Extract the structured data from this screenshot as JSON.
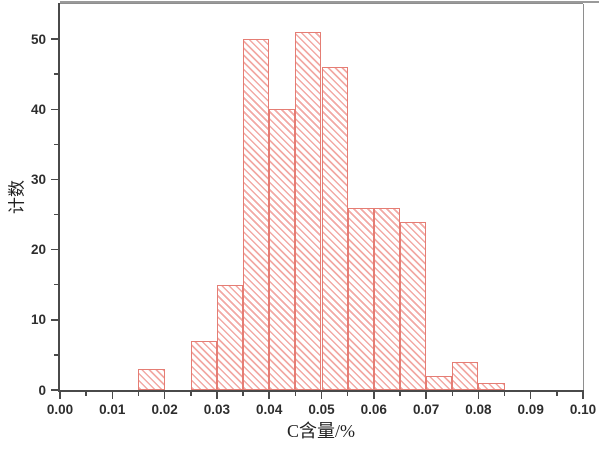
{
  "figure": {
    "background": "#ffffff",
    "frame_dark_color": "#4a4a4a",
    "frame_light_color": "#8e8e8e"
  },
  "chart_data": {
    "type": "bar",
    "subtype": "histogram",
    "title": "",
    "xlabel": "C含量/%",
    "ylabel": "计数",
    "xlim": [
      0.0,
      0.1
    ],
    "ylim": [
      0,
      55
    ],
    "grid": false,
    "legend": "none",
    "bin_width": 0.005,
    "bins": [
      {
        "x_start": 0.015,
        "count": 3
      },
      {
        "x_start": 0.025,
        "count": 7
      },
      {
        "x_start": 0.03,
        "count": 15
      },
      {
        "x_start": 0.035,
        "count": 50
      },
      {
        "x_start": 0.04,
        "count": 40
      },
      {
        "x_start": 0.045,
        "count": 51
      },
      {
        "x_start": 0.05,
        "count": 46
      },
      {
        "x_start": 0.055,
        "count": 26
      },
      {
        "x_start": 0.06,
        "count": 26
      },
      {
        "x_start": 0.065,
        "count": 24
      },
      {
        "x_start": 0.07,
        "count": 2
      },
      {
        "x_start": 0.075,
        "count": 4
      },
      {
        "x_start": 0.08,
        "count": 1
      }
    ],
    "x_major_ticks": [
      {
        "value": 0.0,
        "label": "0.00"
      },
      {
        "value": 0.01,
        "label": "0.01"
      },
      {
        "value": 0.02,
        "label": "0.02"
      },
      {
        "value": 0.03,
        "label": "0.03"
      },
      {
        "value": 0.04,
        "label": "0.04"
      },
      {
        "value": 0.05,
        "label": "0.05"
      },
      {
        "value": 0.06,
        "label": "0.06"
      },
      {
        "value": 0.07,
        "label": "0.07"
      },
      {
        "value": 0.08,
        "label": "0.08"
      },
      {
        "value": 0.09,
        "label": "0.09"
      },
      {
        "value": 0.1,
        "label": "0.10"
      }
    ],
    "x_minor_ticks": [
      0.005,
      0.015,
      0.025,
      0.035,
      0.045,
      0.055,
      0.065,
      0.075,
      0.085,
      0.095
    ],
    "y_major_ticks": [
      {
        "value": 0,
        "label": "0"
      },
      {
        "value": 10,
        "label": "10"
      },
      {
        "value": 20,
        "label": "20"
      },
      {
        "value": 30,
        "label": "30"
      },
      {
        "value": 40,
        "label": "40"
      },
      {
        "value": 50,
        "label": "50"
      }
    ],
    "y_minor_ticks": [
      5,
      15,
      25,
      35,
      45
    ],
    "bar_fill": "#ffffff",
    "bar_hatch_color": "#f2a9a4",
    "bar_edge_color": "#e57d74",
    "hatch_style": "diagonal-backslash"
  }
}
